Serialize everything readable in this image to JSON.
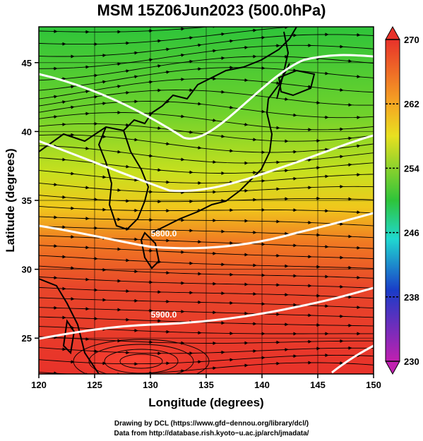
{
  "title": "MSM 15Z06Jun2023 (500.0hPa)",
  "x_axis": {
    "label": "Longitude (degrees)",
    "ticks": [
      "120",
      "125",
      "130",
      "135",
      "140",
      "145",
      "150"
    ]
  },
  "y_axis": {
    "label": "Latitude  (degrees)",
    "ticks": [
      "25",
      "30",
      "35",
      "40",
      "45"
    ]
  },
  "colorbar": {
    "ticks": [
      "270",
      "262",
      "254",
      "246",
      "238",
      "230"
    ]
  },
  "contours": [
    {
      "label": "5800.0",
      "level": 5800,
      "lon": 131.2,
      "lat": 32.4
    },
    {
      "label": "5900.0",
      "level": 5900,
      "lon": 131.2,
      "lat": 26.5
    }
  ],
  "credits": {
    "line1": "Drawing by DCL (https://www.gfd−dennou.org/library/dcl/)",
    "line2": "Data from http://database.rish.kyoto−u.ac.jp/arch/jmadata/"
  },
  "chart_data": {
    "type": "heatmap",
    "title": "MSM 15Z06Jun2023 (500.0hPa)",
    "xlabel": "Longitude (degrees)",
    "ylabel": "Latitude  (degrees)",
    "xlim": [
      120,
      150
    ],
    "ylim": [
      22.4,
      47.6
    ],
    "color_range": [
      230,
      270
    ],
    "colors": {
      "high": "#e8322a",
      "mid": "#2ec43a",
      "low": "#8a1fb0"
    }
  }
}
